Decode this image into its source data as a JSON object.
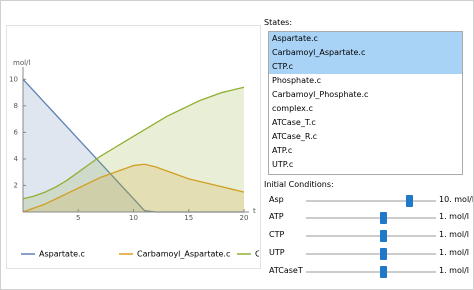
{
  "chart_data": {
    "type": "area",
    "ylabel": "mol/l",
    "xlabel": "t",
    "x": [
      0,
      1,
      2,
      3,
      4,
      5,
      6,
      7,
      8,
      9,
      10,
      11,
      12,
      13,
      14,
      15,
      16,
      17,
      18,
      19,
      20
    ],
    "xlim": [
      0,
      20
    ],
    "xticks": [
      5,
      10,
      15,
      20
    ],
    "ylim": [
      0,
      10.7
    ],
    "yticks": [
      2,
      4,
      6,
      8,
      10
    ],
    "series": [
      {
        "name": "Aspartate.c",
        "color": "#5e81b5",
        "values": [
          10,
          9.1,
          8.2,
          7.3,
          6.4,
          5.5,
          4.6,
          3.7,
          2.8,
          1.9,
          1.0,
          0.1,
          0,
          0,
          0,
          0,
          0,
          0,
          0,
          0,
          0
        ]
      },
      {
        "name": "Carbamoyl_Aspartate.c",
        "color": "#e19c24",
        "values": [
          0,
          0.3,
          0.6,
          1.0,
          1.4,
          1.8,
          2.2,
          2.6,
          2.9,
          3.2,
          3.5,
          3.6,
          3.4,
          3.1,
          2.8,
          2.5,
          2.3,
          2.1,
          1.9,
          1.7,
          1.5
        ]
      },
      {
        "name": "CTP.c",
        "color": "#8fb032",
        "values": [
          1.0,
          1.2,
          1.5,
          1.9,
          2.4,
          3.0,
          3.6,
          4.2,
          4.7,
          5.2,
          5.7,
          6.2,
          6.7,
          7.2,
          7.6,
          8.0,
          8.4,
          8.7,
          9.0,
          9.2,
          9.4
        ]
      }
    ]
  },
  "states": {
    "label": "States:",
    "items": [
      "Aspartate.c",
      "Carbamoyl_Aspartate.c",
      "CTP.c",
      "Phosphate.c",
      "Carbamoyl_Phosphate.c",
      "complex.c",
      "ATCase_T.c",
      "ATCase_R.c",
      "ATP.c",
      "UTP.c"
    ],
    "selected": [
      0,
      1,
      2
    ]
  },
  "initial_conditions": {
    "label": "Initial Conditions:",
    "rows": [
      {
        "name": "Asp",
        "value_label": "10. mol/l"
      },
      {
        "name": "ATP",
        "value_label": "1. mol/l"
      },
      {
        "name": "CTP",
        "value_label": "1. mol/l"
      },
      {
        "name": "UTP",
        "value_label": "1. mol/l"
      },
      {
        "name": "ATCaseT",
        "value_label": "1. mol/l"
      }
    ]
  }
}
